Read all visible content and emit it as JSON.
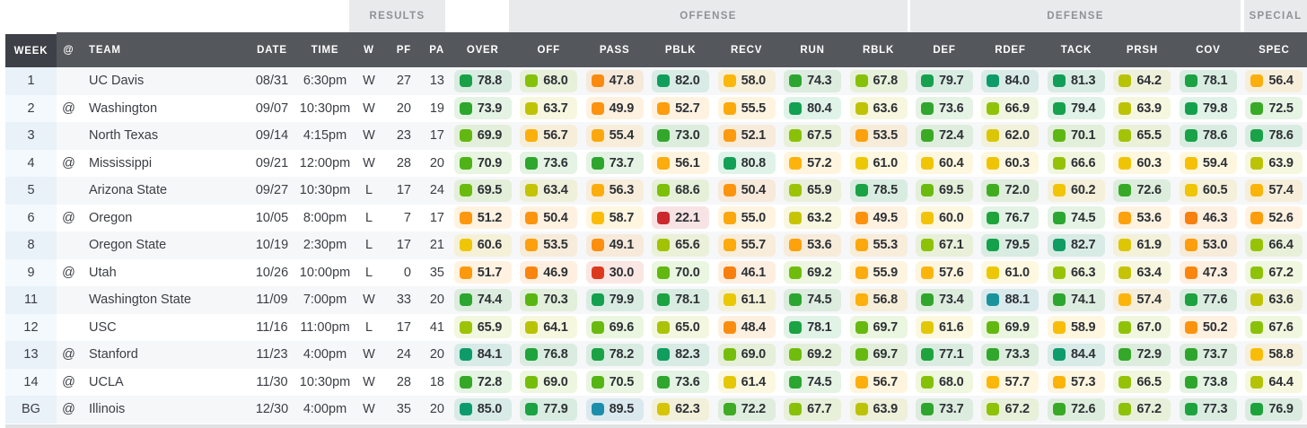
{
  "header": {
    "groups": [
      {
        "id": "results",
        "label": "RESULTS"
      },
      {
        "id": "offense",
        "label": "OFFENSE"
      },
      {
        "id": "defense",
        "label": "DEFENSE"
      },
      {
        "id": "special",
        "label": "SPECIAL"
      }
    ],
    "columns": {
      "week": "WEEK",
      "at": "@",
      "team": "TEAM",
      "date": "DATE",
      "time": "TIME",
      "w": "W",
      "pf": "PF",
      "pa": "PA"
    },
    "grade_columns": [
      "OVER",
      "OFF",
      "PASS",
      "PBLK",
      "RECV",
      "RUN",
      "RBLK",
      "DEF",
      "RDEF",
      "TACK",
      "PRSH",
      "COV",
      "SPEC"
    ]
  },
  "rows": [
    {
      "week": "1",
      "at": "",
      "team": "UC Davis",
      "date": "08/31",
      "time": "6:30pm",
      "result": "W",
      "pf": "27",
      "pa": "13",
      "grades": [
        "78.8",
        "68.0",
        "47.8",
        "82.0",
        "58.0",
        "74.3",
        "67.8",
        "79.7",
        "84.0",
        "81.3",
        "64.2",
        "78.1",
        "56.4"
      ]
    },
    {
      "week": "2",
      "at": "@",
      "team": "Washington",
      "date": "09/07",
      "time": "10:30pm",
      "result": "W",
      "pf": "20",
      "pa": "19",
      "grades": [
        "73.9",
        "63.7",
        "49.9",
        "52.7",
        "55.5",
        "80.4",
        "63.6",
        "73.6",
        "66.9",
        "79.4",
        "63.9",
        "79.8",
        "72.5"
      ]
    },
    {
      "week": "3",
      "at": "",
      "team": "North Texas",
      "date": "09/14",
      "time": "4:15pm",
      "result": "W",
      "pf": "23",
      "pa": "17",
      "grades": [
        "69.9",
        "56.7",
        "55.4",
        "73.0",
        "52.1",
        "67.5",
        "53.5",
        "72.4",
        "62.0",
        "70.1",
        "65.5",
        "78.6",
        "78.6"
      ]
    },
    {
      "week": "4",
      "at": "@",
      "team": "Mississippi",
      "date": "09/21",
      "time": "12:00pm",
      "result": "W",
      "pf": "28",
      "pa": "20",
      "grades": [
        "70.9",
        "73.6",
        "73.7",
        "56.1",
        "80.8",
        "57.2",
        "61.0",
        "60.4",
        "60.3",
        "66.6",
        "60.3",
        "59.4",
        "63.9"
      ]
    },
    {
      "week": "5",
      "at": "",
      "team": "Arizona State",
      "date": "09/27",
      "time": "10:30pm",
      "result": "L",
      "pf": "17",
      "pa": "24",
      "grades": [
        "69.5",
        "63.4",
        "56.3",
        "68.6",
        "50.4",
        "65.9",
        "78.5",
        "69.5",
        "72.0",
        "60.2",
        "72.6",
        "60.5",
        "57.4"
      ]
    },
    {
      "week": "6",
      "at": "@",
      "team": "Oregon",
      "date": "10/05",
      "time": "8:00pm",
      "result": "L",
      "pf": "7",
      "pa": "17",
      "grades": [
        "51.2",
        "50.4",
        "58.7",
        "22.1",
        "55.0",
        "63.2",
        "49.5",
        "60.0",
        "76.7",
        "74.5",
        "53.6",
        "46.3",
        "52.6"
      ]
    },
    {
      "week": "8",
      "at": "",
      "team": "Oregon State",
      "date": "10/19",
      "time": "2:30pm",
      "result": "L",
      "pf": "17",
      "pa": "21",
      "grades": [
        "60.6",
        "53.5",
        "49.1",
        "65.6",
        "55.7",
        "53.6",
        "55.3",
        "67.1",
        "79.5",
        "82.7",
        "61.9",
        "53.0",
        "66.4"
      ]
    },
    {
      "week": "9",
      "at": "@",
      "team": "Utah",
      "date": "10/26",
      "time": "10:00pm",
      "result": "L",
      "pf": "0",
      "pa": "35",
      "grades": [
        "51.7",
        "46.9",
        "30.0",
        "70.0",
        "46.1",
        "69.2",
        "55.9",
        "57.6",
        "61.0",
        "66.3",
        "63.4",
        "47.3",
        "67.2"
      ]
    },
    {
      "week": "11",
      "at": "",
      "team": "Washington State",
      "date": "11/09",
      "time": "7:00pm",
      "result": "W",
      "pf": "33",
      "pa": "20",
      "grades": [
        "74.4",
        "70.3",
        "79.9",
        "78.1",
        "61.1",
        "74.5",
        "56.8",
        "73.4",
        "88.1",
        "74.1",
        "57.4",
        "77.6",
        "63.6"
      ]
    },
    {
      "week": "12",
      "at": "",
      "team": "USC",
      "date": "11/16",
      "time": "11:00pm",
      "result": "L",
      "pf": "17",
      "pa": "41",
      "grades": [
        "65.9",
        "64.1",
        "69.6",
        "65.0",
        "48.4",
        "78.1",
        "69.7",
        "61.6",
        "69.9",
        "58.9",
        "67.0",
        "50.2",
        "67.6"
      ]
    },
    {
      "week": "13",
      "at": "@",
      "team": "Stanford",
      "date": "11/23",
      "time": "4:00pm",
      "result": "W",
      "pf": "24",
      "pa": "20",
      "grades": [
        "84.1",
        "76.8",
        "78.2",
        "82.3",
        "69.0",
        "69.2",
        "69.7",
        "77.1",
        "73.3",
        "84.4",
        "72.9",
        "73.7",
        "58.8"
      ]
    },
    {
      "week": "14",
      "at": "@",
      "team": "UCLA",
      "date": "11/30",
      "time": "10:30pm",
      "result": "W",
      "pf": "28",
      "pa": "18",
      "grades": [
        "72.8",
        "69.0",
        "70.5",
        "73.6",
        "61.4",
        "74.5",
        "56.7",
        "68.0",
        "57.7",
        "57.3",
        "66.5",
        "73.8",
        "64.4"
      ]
    },
    {
      "week": "BG",
      "at": "@",
      "team": "Illinois",
      "date": "12/30",
      "time": "4:00pm",
      "result": "W",
      "pf": "35",
      "pa": "20",
      "grades": [
        "85.0",
        "77.9",
        "89.5",
        "62.3",
        "72.2",
        "67.7",
        "63.9",
        "73.7",
        "67.2",
        "72.6",
        "67.2",
        "77.3",
        "76.9"
      ]
    }
  ],
  "colors": {
    "scale": [
      [
        20,
        "#c72430"
      ],
      [
        30,
        "#dc3a1e"
      ],
      [
        38,
        "#e85512"
      ],
      [
        44,
        "#f4710d"
      ],
      [
        48,
        "#fb8b0e"
      ],
      [
        52,
        "#fd9a0d"
      ],
      [
        56,
        "#fcab0c"
      ],
      [
        58.5,
        "#fbbb09"
      ],
      [
        61,
        "#ecc804"
      ],
      [
        63.5,
        "#c2c305"
      ],
      [
        66,
        "#9ac306"
      ],
      [
        68.5,
        "#7fc008"
      ],
      [
        70.5,
        "#55b513"
      ],
      [
        73,
        "#32a72a"
      ],
      [
        77,
        "#1ea33c"
      ],
      [
        80.5,
        "#12a053"
      ],
      [
        84,
        "#0d9c69"
      ],
      [
        87.5,
        "#0b9a78"
      ],
      [
        88.3,
        "#2191a9"
      ],
      [
        93,
        "#0e86b2"
      ]
    ],
    "pill_bg_alpha": 0.13,
    "header_bg": "#54575c",
    "week_header_bg": "#3d4046",
    "group_bg": "#e8eaec",
    "group_text": "#8f9295",
    "row_alt_bg": "#f6f7f9",
    "week_col_bg_odd": "#e9f1f9",
    "week_col_bg_even": "#f4f9fd"
  }
}
